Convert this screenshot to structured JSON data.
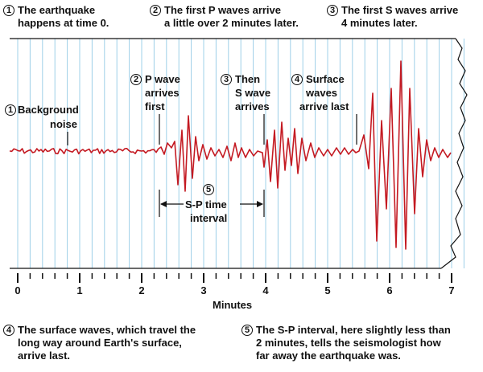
{
  "header_notes": [
    {
      "num": "1",
      "line1": "The earthquake",
      "line2": "happens at time 0."
    },
    {
      "num": "2",
      "line1": "The first P waves arrive",
      "line2": "a little over 2 minutes later."
    },
    {
      "num": "3",
      "line1": "The first S waves arrive",
      "line2": "4 minutes later."
    }
  ],
  "labels": {
    "background": {
      "num": "1",
      "line1": "Background",
      "line2": "noise"
    },
    "p_wave": {
      "num": "2",
      "line1": "P wave",
      "line2": "arrives",
      "line3": "first"
    },
    "s_wave": {
      "num": "3",
      "line1": "Then",
      "line2": "S wave",
      "line3": "arrives"
    },
    "surface": {
      "num": "4",
      "line1": "Surface",
      "line2": "waves",
      "line3": "arrive last"
    },
    "sp_interval": {
      "num": "5",
      "line1": "S-P time",
      "line2": "interval"
    }
  },
  "axis": {
    "title": "Minutes",
    "ticks": [
      "0",
      "1",
      "2",
      "3",
      "4",
      "5",
      "6",
      "7"
    ]
  },
  "footer_notes": [
    {
      "num": "4",
      "line1": "The surface waves, which travel the",
      "line2": "long way around Earth's surface,",
      "line3": "arrive last."
    },
    {
      "num": "5",
      "line1": "The S-P interval, here slightly less than",
      "line2": "2 minutes, tells the seismologist how",
      "line3": "far away the earthquake was."
    }
  ],
  "colors": {
    "trace": "#c41a22",
    "grid": "#9fd0e8",
    "ink": "#111111"
  }
}
